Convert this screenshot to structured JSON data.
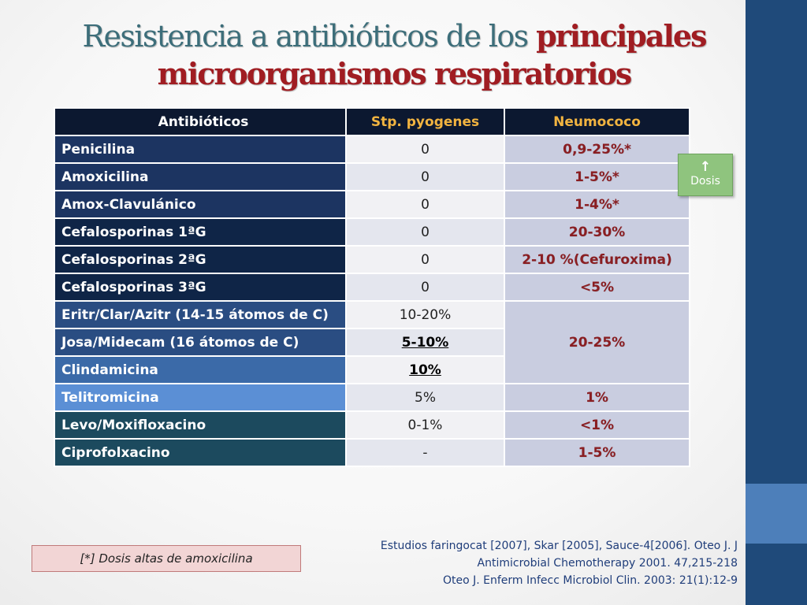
{
  "title": {
    "part1": "Resistencia a antibióticos de los ",
    "highlight1": "principales",
    "highlight2": "microorganismos respiratorios"
  },
  "table": {
    "headers": [
      "Antibióticos",
      "Stp. pyogenes",
      "Neumococo"
    ],
    "rows": [
      {
        "name": "Penicilina",
        "stp": "0",
        "neumo": "0,9-25%*"
      },
      {
        "name": "Amoxicilina",
        "stp": "0",
        "neumo": "1-5%*"
      },
      {
        "name": "Amox-Clavulánico",
        "stp": "0",
        "neumo": "1-4%*"
      },
      {
        "name": "Cefalosporinas 1ªG",
        "stp": "0",
        "neumo": "20-30%"
      },
      {
        "name": "Cefalosporinas 2ªG",
        "stp": "0",
        "neumo": "2-10 %(Cefuroxima)"
      },
      {
        "name": "Cefalosporinas 3ªG",
        "stp": "0",
        "neumo": "<5%"
      },
      {
        "name": "Eritr/Clar/Azitr (14-15 átomos de C)",
        "stp": "10-20%",
        "neumo": "20-25%"
      },
      {
        "name": "Josa/Midecam  (16 átomos de C)",
        "stp": "5-10%"
      },
      {
        "name": "Clindamicina",
        "stp": "10%"
      },
      {
        "name": "Telitromicina",
        "stp": "5%",
        "neumo": "1%"
      },
      {
        "name": "Levo/Moxifloxacino",
        "stp": "0-1%",
        "neumo": "<1%"
      },
      {
        "name": "Ciprofolxacino",
        "stp": "-",
        "neumo": "1-5%"
      }
    ]
  },
  "dosis_button": {
    "arrow": "↑",
    "label": "Dosis"
  },
  "footnote": "[*]  Dosis altas de amoxicilina",
  "references": [
    "Estudios faringocat  [2007], Skar [2005],  Sauce-4[2006]. Oteo J.  J",
    "Antimicrobial Chemotherapy 2001. 47,215-218",
    "Oteo J. Enferm Infecc Microbiol Clin. 2003: 21(1):12-9"
  ],
  "colors": {
    "sidebar": "#1f4a7a",
    "title": "#3d6e7a",
    "highlight": "#a01d22",
    "header_accent": "#f2b440"
  }
}
